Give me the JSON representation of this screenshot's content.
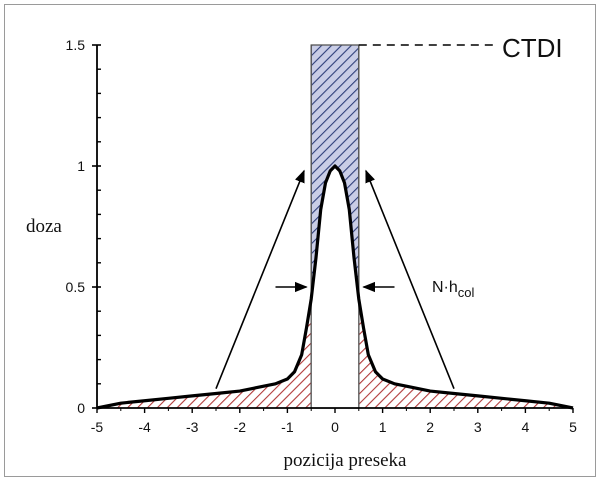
{
  "chart_data": {
    "type": "area",
    "title": "",
    "xlabel": "pozicija preseka",
    "ylabel": "doza",
    "xlim": [
      -5,
      5
    ],
    "ylim": [
      0,
      1.5
    ],
    "x_ticks": [
      "-5",
      "-4",
      "-3",
      "-2",
      "-1",
      "0",
      "1",
      "2",
      "3",
      "4",
      "5"
    ],
    "y_ticks": [
      "0",
      "0.5",
      "1",
      "1.5"
    ],
    "series": [
      {
        "x": [
          -5,
          -4.5,
          -4,
          -3.5,
          -3,
          -2.5,
          -2,
          -1.5,
          -1.25,
          -1,
          -0.85,
          -0.7,
          -0.6,
          -0.5,
          -0.4,
          -0.3,
          -0.2,
          -0.1,
          0,
          0.1,
          0.2,
          0.3,
          0.4,
          0.5,
          0.6,
          0.7,
          0.85,
          1,
          1.25,
          1.5,
          2,
          2.5,
          3,
          3.5,
          4,
          4.5,
          5
        ],
        "y": [
          0,
          0.02,
          0.03,
          0.04,
          0.05,
          0.06,
          0.07,
          0.09,
          0.1,
          0.12,
          0.15,
          0.22,
          0.33,
          0.45,
          0.62,
          0.82,
          0.93,
          0.98,
          1.0,
          0.98,
          0.93,
          0.82,
          0.62,
          0.45,
          0.33,
          0.22,
          0.15,
          0.12,
          0.1,
          0.09,
          0.07,
          0.06,
          0.05,
          0.04,
          0.03,
          0.02,
          0
        ]
      }
    ],
    "ctdi_box": {
      "x0": -0.5,
      "x1": 0.5,
      "y": 1.5
    },
    "annotations": {
      "ctdi": "CTDI",
      "nh_main": "N·h",
      "nh_sub": "col"
    },
    "colors": {
      "curve": "#000000",
      "tail_hatch": "#b23a3a",
      "center_hatch": "#2f3f7a",
      "center_fill": "#c9cde6"
    }
  }
}
